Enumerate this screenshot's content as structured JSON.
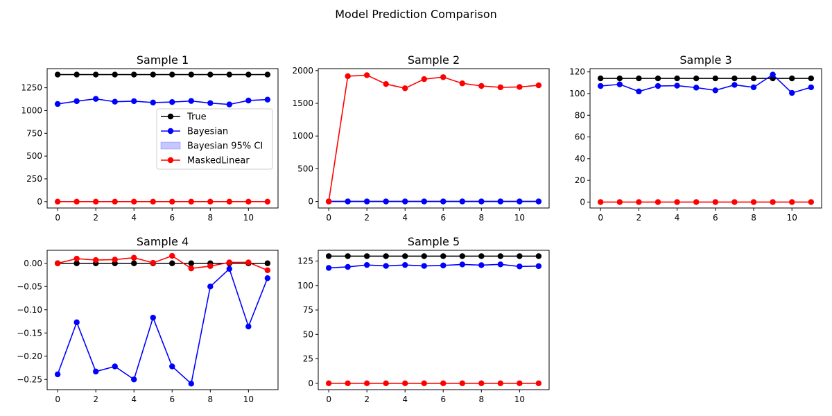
{
  "figure": {
    "title": "Model Prediction Comparison"
  },
  "colors": {
    "true": "#000000",
    "bayesian": "#0000ff",
    "masked": "#ff0000",
    "ci": "#0000ff"
  },
  "chart_data": [
    {
      "type": "line",
      "title": "Sample 1",
      "x": [
        0,
        1,
        2,
        3,
        4,
        5,
        6,
        7,
        8,
        9,
        10,
        11
      ],
      "xticks": [
        0,
        2,
        4,
        6,
        8,
        10
      ],
      "ylim": [
        -70,
        1460
      ],
      "yticks": [
        0,
        250,
        500,
        750,
        1000,
        1250
      ],
      "ytick_labels": [
        "0",
        "250",
        "500",
        "750",
        "1000",
        "1250"
      ],
      "series": [
        {
          "name": "True",
          "color": "#000000",
          "values": [
            1395,
            1395,
            1395,
            1395,
            1395,
            1395,
            1395,
            1395,
            1395,
            1395,
            1395,
            1395
          ]
        },
        {
          "name": "Bayesian",
          "color": "#0000ff",
          "values": [
            1072,
            1103,
            1128,
            1097,
            1103,
            1088,
            1093,
            1105,
            1082,
            1067,
            1110,
            1120
          ]
        },
        {
          "name": "MaskedLinear",
          "color": "#ff0000",
          "values": [
            0,
            0,
            0,
            0,
            0,
            0,
            0,
            0,
            0,
            0,
            0,
            0
          ]
        }
      ],
      "legend": {
        "placement": "center-right",
        "entries": [
          {
            "label": "True",
            "kind": "line",
            "color": "#000000"
          },
          {
            "label": "Bayesian",
            "kind": "line",
            "color": "#0000ff"
          },
          {
            "label": "Bayesian 95% CI",
            "kind": "patch",
            "color": "#0000ff"
          },
          {
            "label": "MaskedLinear",
            "kind": "line",
            "color": "#ff0000"
          }
        ]
      }
    },
    {
      "type": "line",
      "title": "Sample 2",
      "x": [
        0,
        1,
        2,
        3,
        4,
        5,
        6,
        7,
        8,
        9,
        10,
        11
      ],
      "xticks": [
        0,
        2,
        4,
        6,
        8,
        10
      ],
      "ylim": [
        -100,
        2030
      ],
      "yticks": [
        0,
        500,
        1000,
        1500,
        2000
      ],
      "ytick_labels": [
        "0",
        "500",
        "1000",
        "1500",
        "2000"
      ],
      "series": [
        {
          "name": "True",
          "color": "#000000",
          "values": [
            0,
            0,
            0,
            0,
            0,
            0,
            0,
            0,
            0,
            0,
            0,
            0
          ]
        },
        {
          "name": "Bayesian",
          "color": "#0000ff",
          "values": [
            0,
            0,
            0,
            0,
            0,
            0,
            0,
            0,
            0,
            0,
            0,
            0
          ]
        },
        {
          "name": "MaskedLinear",
          "color": "#ff0000",
          "values": [
            0,
            1915,
            1930,
            1795,
            1730,
            1870,
            1900,
            1805,
            1765,
            1745,
            1750,
            1775
          ]
        }
      ]
    },
    {
      "type": "line",
      "title": "Sample 3",
      "x": [
        0,
        1,
        2,
        3,
        4,
        5,
        6,
        7,
        8,
        9,
        10,
        11
      ],
      "xticks": [
        0,
        2,
        4,
        6,
        8,
        10
      ],
      "ylim": [
        -5.5,
        123
      ],
      "yticks": [
        0,
        20,
        40,
        60,
        80,
        100,
        120
      ],
      "ytick_labels": [
        "0",
        "20",
        "40",
        "60",
        "80",
        "100",
        "120"
      ],
      "series": [
        {
          "name": "True",
          "color": "#000000",
          "values": [
            114,
            114,
            114,
            114,
            114,
            114,
            114,
            114,
            114,
            114,
            114,
            114
          ]
        },
        {
          "name": "Bayesian",
          "color": "#0000ff",
          "values": [
            107,
            108.5,
            102,
            107,
            107.3,
            105.5,
            103,
            108,
            105.8,
            117.5,
            100.6,
            105.8
          ]
        },
        {
          "name": "MaskedLinear",
          "color": "#ff0000",
          "values": [
            0,
            0,
            0,
            0,
            0,
            0,
            0,
            0,
            0,
            0,
            0,
            0
          ]
        }
      ]
    },
    {
      "type": "line",
      "title": "Sample 4",
      "x": [
        0,
        1,
        2,
        3,
        4,
        5,
        6,
        7,
        8,
        9,
        10,
        11
      ],
      "xticks": [
        0,
        2,
        4,
        6,
        8,
        10
      ],
      "ylim": [
        -0.272,
        0.028
      ],
      "yticks": [
        0,
        -0.05,
        -0.1,
        -0.15,
        -0.2,
        -0.25
      ],
      "ytick_labels": [
        "0.00",
        "−0.05",
        "−0.10",
        "−0.15",
        "−0.20",
        "−0.25"
      ],
      "series": [
        {
          "name": "True",
          "color": "#000000",
          "values": [
            0,
            0,
            0,
            0,
            0,
            0,
            0,
            0,
            0,
            0,
            0,
            0
          ]
        },
        {
          "name": "Bayesian",
          "color": "#0000ff",
          "values": [
            -0.239,
            -0.127,
            -0.233,
            -0.222,
            -0.25,
            -0.117,
            -0.222,
            -0.259,
            -0.05,
            -0.012,
            -0.136,
            -0.032
          ]
        },
        {
          "name": "MaskedLinear",
          "color": "#ff0000",
          "values": [
            0,
            0.01,
            0.007,
            0.008,
            0.012,
            0.001,
            0.016,
            -0.011,
            -0.006,
            0.002,
            0.002,
            -0.015
          ]
        }
      ]
    },
    {
      "type": "line",
      "title": "Sample 5",
      "x": [
        0,
        1,
        2,
        3,
        4,
        5,
        6,
        7,
        8,
        9,
        10,
        11
      ],
      "xticks": [
        0,
        2,
        4,
        6,
        8,
        10
      ],
      "ylim": [
        -6.5,
        136
      ],
      "yticks": [
        0,
        25,
        50,
        75,
        100,
        125
      ],
      "ytick_labels": [
        "0",
        "25",
        "50",
        "75",
        "100",
        "125"
      ],
      "series": [
        {
          "name": "True",
          "color": "#000000",
          "values": [
            130,
            130,
            130,
            130,
            130,
            130,
            130,
            130,
            130,
            130,
            130,
            130
          ]
        },
        {
          "name": "Bayesian",
          "color": "#0000ff",
          "values": [
            118,
            119,
            121,
            120,
            121,
            120,
            120.5,
            121.5,
            120.8,
            121.6,
            119.5,
            119.8
          ]
        },
        {
          "name": "MaskedLinear",
          "color": "#ff0000",
          "values": [
            0,
            0,
            0,
            0,
            0,
            0,
            0,
            0,
            0,
            0,
            0,
            0
          ]
        }
      ]
    }
  ]
}
